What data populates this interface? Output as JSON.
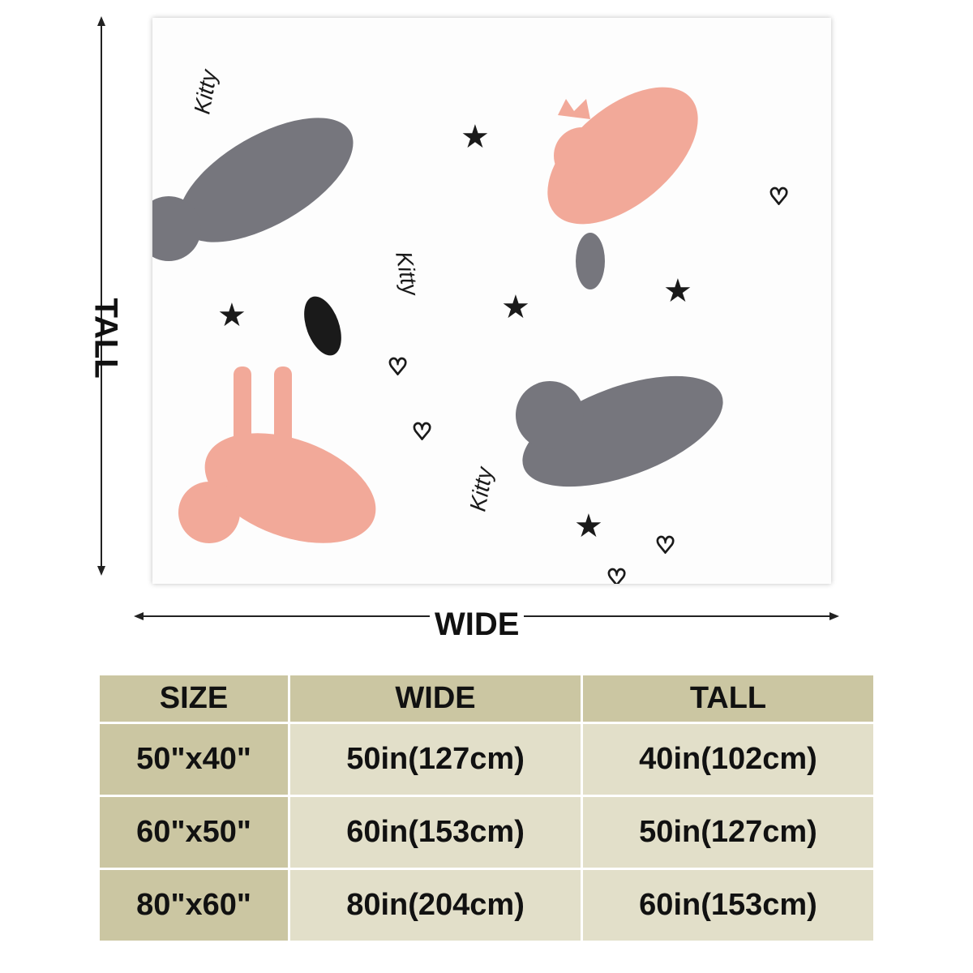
{
  "dimensions": {
    "tall_label": "TALL",
    "wide_label": "WIDE"
  },
  "pattern": {
    "lettering": "Kitty",
    "colors": {
      "pink": "#f2a999",
      "gray": "#76767d",
      "black": "#1a1a1a"
    }
  },
  "table": {
    "headers": [
      "SIZE",
      "WIDE",
      "TALL"
    ],
    "rows": [
      {
        "size": "50\"x40\"",
        "wide": "50in(127cm)",
        "tall": "40in(102cm)"
      },
      {
        "size": "60\"x50\"",
        "wide": "60in(153cm)",
        "tall": "50in(127cm)"
      },
      {
        "size": "80\"x60\"",
        "wide": "80in(204cm)",
        "tall": "60in(153cm)"
      }
    ],
    "colors": {
      "header": "#cbc6a2",
      "cell": "#e2dfc9"
    }
  }
}
